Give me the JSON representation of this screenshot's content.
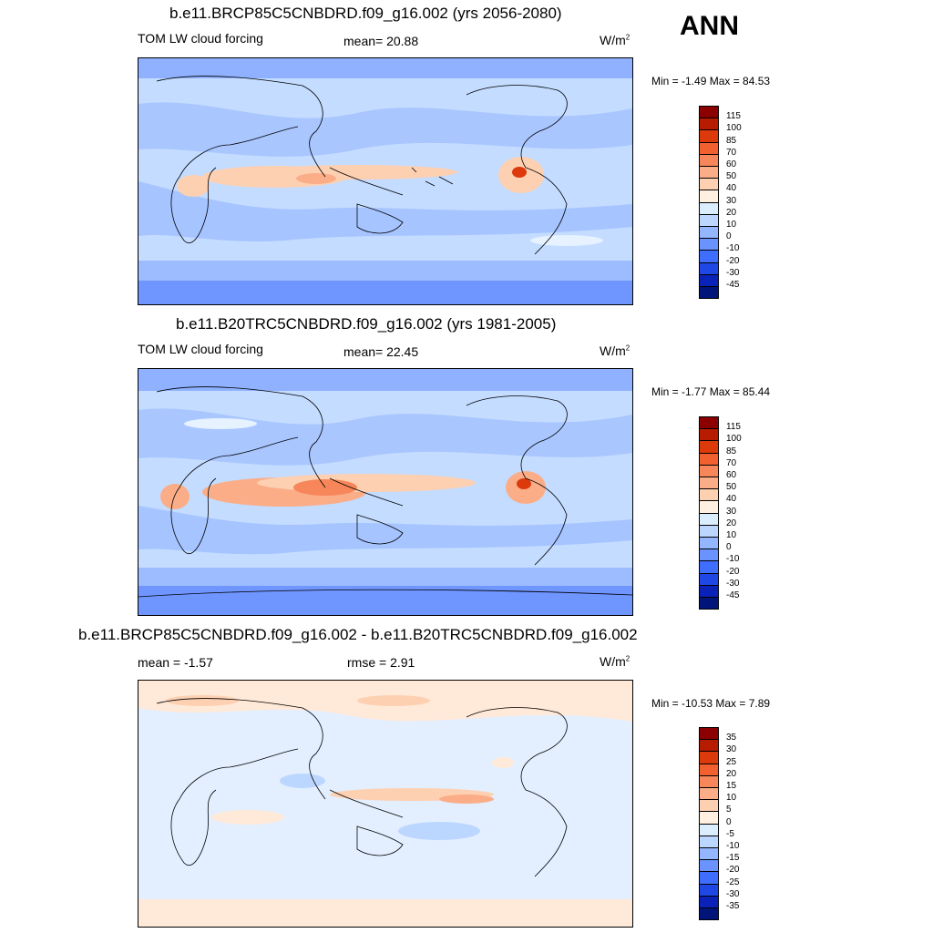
{
  "season": "ANN",
  "panels": [
    {
      "title": "b.e11.BRCP85C5CNBDRD.f09_g16.002 (yrs 2056-2080)",
      "left_label": "TOM LW cloud forcing",
      "stat_label": "mean=  20.88",
      "units_base": "W/m",
      "units_exp": "2",
      "minmax": "Min =  -1.49 Max =  84.53",
      "colorbar": {
        "labels": [
          "115",
          "100",
          "85",
          "70",
          "60",
          "50",
          "40",
          "30",
          "20",
          "10",
          "0",
          "-10",
          "-20",
          "-30",
          "-45"
        ],
        "colors": [
          "#8b0000",
          "#b81c00",
          "#dd3a0c",
          "#f26030",
          "#f7865a",
          "#fbad88",
          "#fdd0b2",
          "#fff0e2",
          "#dbeeff",
          "#bcd7ff",
          "#94b6ff",
          "#6a93ff",
          "#3f6eff",
          "#1f47e6",
          "#0a22b8",
          "#00157a"
        ]
      }
    },
    {
      "title": "b.e11.B20TRC5CNBDRD.f09_g16.002 (yrs 1981-2005)",
      "left_label": "TOM LW cloud forcing",
      "stat_label": "mean=  22.45",
      "units_base": "W/m",
      "units_exp": "2",
      "minmax": "Min =  -1.77 Max =  85.44",
      "colorbar": {
        "labels": [
          "115",
          "100",
          "85",
          "70",
          "60",
          "50",
          "40",
          "30",
          "20",
          "10",
          "0",
          "-10",
          "-20",
          "-30",
          "-45"
        ],
        "colors": [
          "#8b0000",
          "#b81c00",
          "#dd3a0c",
          "#f26030",
          "#f7865a",
          "#fbad88",
          "#fdd0b2",
          "#fff0e2",
          "#dbeeff",
          "#bcd7ff",
          "#94b6ff",
          "#6a93ff",
          "#3f6eff",
          "#1f47e6",
          "#0a22b8",
          "#00157a"
        ]
      }
    },
    {
      "title": "b.e11.BRCP85C5CNBDRD.f09_g16.002 - b.e11.B20TRC5CNBDRD.f09_g16.002",
      "left_label": "mean =  -1.57",
      "stat_label": "rmse =   2.91",
      "units_base": "W/m",
      "units_exp": "2",
      "minmax": "Min = -10.53 Max =   7.89",
      "colorbar": {
        "labels": [
          "35",
          "30",
          "25",
          "20",
          "15",
          "10",
          "5",
          "0",
          "-5",
          "-10",
          "-15",
          "-20",
          "-25",
          "-30",
          "-35"
        ],
        "colors": [
          "#8b0000",
          "#b81c00",
          "#dd3a0c",
          "#f26030",
          "#f7865a",
          "#fbad88",
          "#fdd0b2",
          "#fff0e2",
          "#dbeeff",
          "#bcd7ff",
          "#94b6ff",
          "#6a93ff",
          "#3f6eff",
          "#1f47e6",
          "#0a22b8",
          "#00157a"
        ]
      }
    }
  ]
}
